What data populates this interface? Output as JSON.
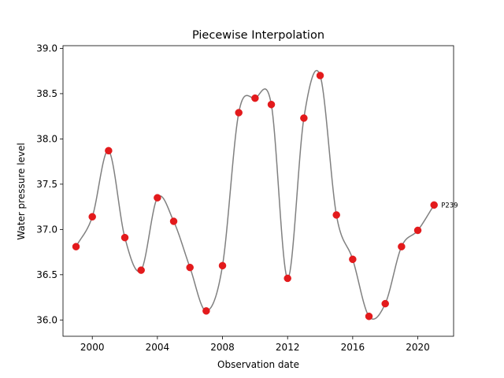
{
  "chart_data": {
    "type": "line",
    "title": "Piecewise Interpolation",
    "xlabel": "Observation date",
    "ylabel": "Water pressure level",
    "xlim": [
      1998.2,
      2022.2
    ],
    "ylim": [
      35.82,
      39.03
    ],
    "x_ticks": [
      2000,
      2004,
      2008,
      2012,
      2016,
      2020
    ],
    "x_tick_labels": [
      "2000",
      "2004",
      "2008",
      "2012",
      "2016",
      "2020"
    ],
    "y_ticks": [
      36.0,
      36.5,
      37.0,
      37.5,
      38.0,
      38.5,
      39.0
    ],
    "y_tick_labels": [
      "36.0",
      "36.5",
      "37.0",
      "37.5",
      "38.0",
      "38.5",
      "39.0"
    ],
    "grid": false,
    "series": [
      {
        "x": [
          1999,
          2000,
          2001,
          2002,
          2003,
          2004,
          2005,
          2006,
          2007,
          2008,
          2009,
          2010,
          2011,
          2012,
          2013,
          2014,
          2015,
          2016,
          2017,
          2018,
          2019,
          2020,
          2021
        ],
        "values": [
          36.81,
          37.14,
          37.87,
          36.91,
          36.55,
          37.35,
          37.09,
          36.58,
          36.1,
          36.6,
          38.29,
          38.45,
          38.38,
          36.46,
          38.23,
          38.7,
          37.16,
          36.67,
          36.04,
          36.18,
          36.81,
          36.99,
          37.27
        ],
        "line_color": "#808080",
        "marker_color": "#e31a1c"
      }
    ],
    "annotations": [
      {
        "text": "P239",
        "x": 2021,
        "y": 37.27
      }
    ]
  }
}
